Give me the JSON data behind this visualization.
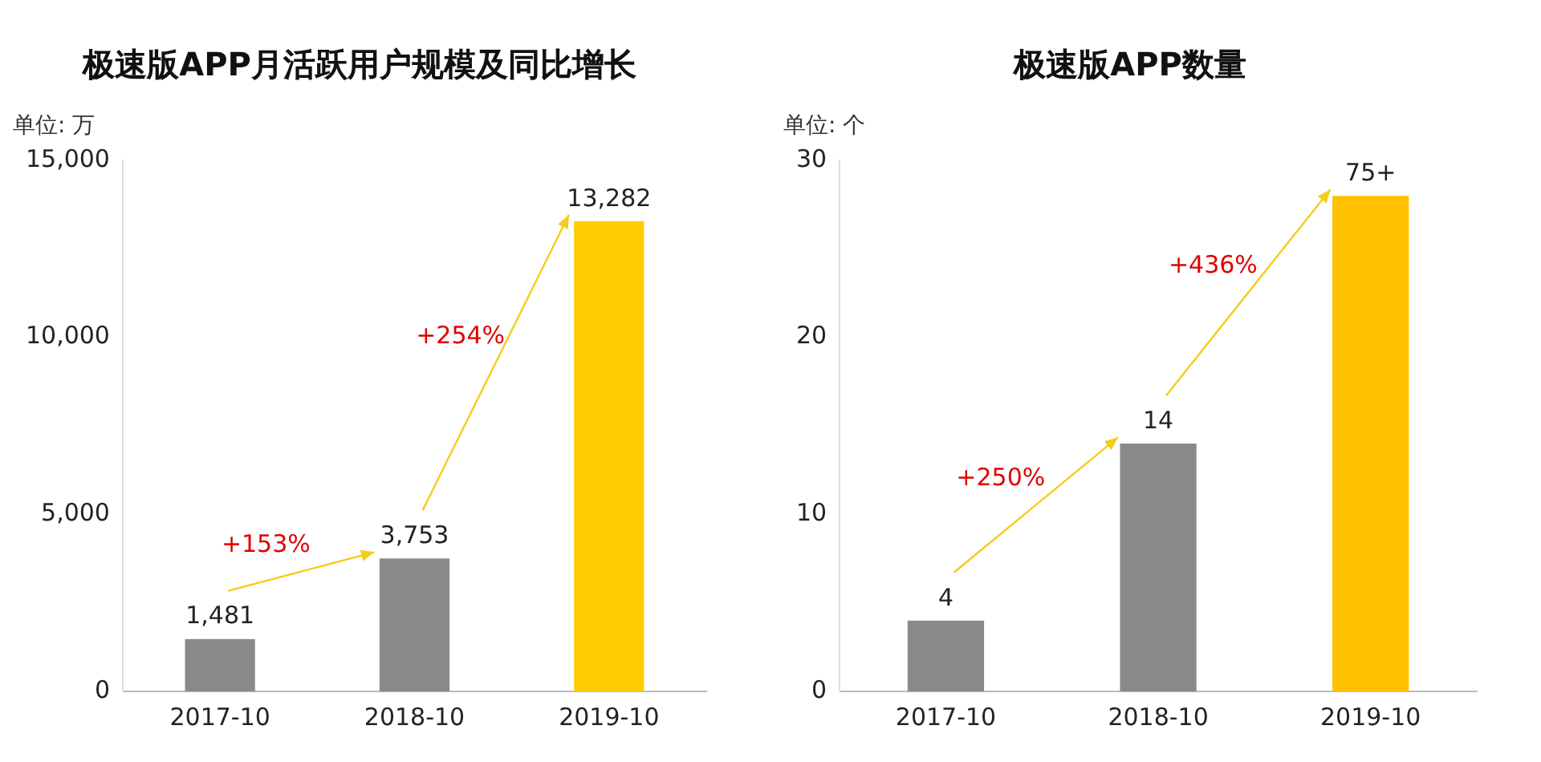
{
  "chart_data": [
    {
      "type": "bar",
      "title": "极速版APP月活跃用户规模及同比增长",
      "ylabel": "单位: 万",
      "categories": [
        "2017-10",
        "2018-10",
        "2019-10"
      ],
      "values": [
        1481,
        3753,
        13282
      ],
      "colors": [
        "#898989",
        "#898989",
        "#ffcc00"
      ],
      "value_labels": [
        "1,481",
        "3,753",
        "13,282"
      ],
      "ylim": [
        0,
        15000
      ],
      "yticks": [
        {
          "value": 0,
          "label": "0"
        },
        {
          "value": 5000,
          "label": "5,000"
        },
        {
          "value": 10000,
          "label": "10,000"
        },
        {
          "value": 15000,
          "label": "15,000"
        }
      ],
      "grid": false,
      "legend": false,
      "annotations": [
        "+153%",
        "+254%"
      ]
    },
    {
      "type": "bar",
      "title": "极速版APP数量",
      "ylabel": "单位: 个",
      "categories": [
        "2017-10",
        "2018-10",
        "2019-10"
      ],
      "values": [
        4,
        14,
        28
      ],
      "colors": [
        "#898989",
        "#898989",
        "#ffc000"
      ],
      "value_labels": [
        "4",
        "14",
        "75+"
      ],
      "ylim": [
        0,
        30
      ],
      "yticks": [
        0,
        10,
        20,
        30
      ],
      "grid": false,
      "legend": false,
      "annotations": [
        "+250%",
        "+436%"
      ]
    }
  ]
}
